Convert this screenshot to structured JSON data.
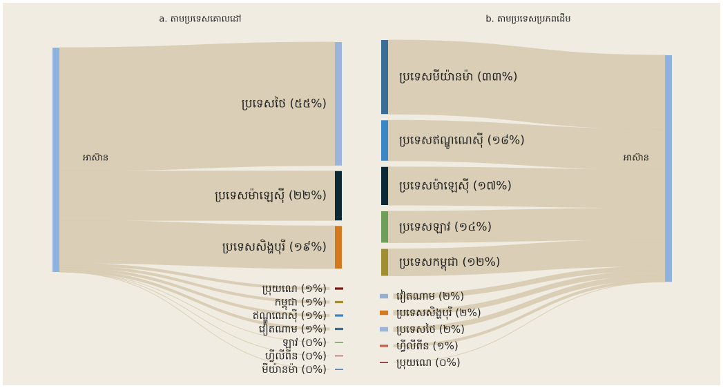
{
  "chart_data": [
    {
      "type": "sankey",
      "title": "a. តាមប្រទេសគោលដៅ",
      "source": "អាស៊ាន",
      "source_side": "left",
      "source_color": "#8fb3e0",
      "categories": [
        "ប្រទេសថៃ",
        "ប្រទេសម៉ាឡេស៊ី",
        "ប្រទេសសិង្ហបុរី",
        "ប្រុយណេ",
        "កម្ពុជា",
        "ឥណ្ឌូណេស៊ី",
        "វៀតណាម",
        "ឡាវ",
        "ហ្វីលីពីន",
        "មីយ៉ានម៉ា"
      ],
      "values": [
        55,
        22,
        19,
        1,
        1,
        1,
        1,
        0,
        0,
        0
      ],
      "value_labels": [
        "(៥៥%)",
        "(២២%)",
        "(១៩%)",
        "(១%)",
        "(១%)",
        "(១%)",
        "(១%)",
        "(០%)",
        "(០%)",
        "(០%)"
      ],
      "colors": [
        "#9ab4dc",
        "#0b2a35",
        "#d4791e",
        "#7a1a12",
        "#a08f32",
        "#3b86c6",
        "#3a6e96",
        "#6f9e5a",
        "#c9624a",
        "#3a6e96"
      ]
    },
    {
      "type": "sankey",
      "title": "b. តាមប្រទេសប្រភពដើម",
      "source": "អាស៊ាន",
      "source_side": "right",
      "source_color": "#8fb3e0",
      "categories": [
        "ប្រទេសមីយ៉ានម៉ា",
        "ប្រទេសឥណ្ឌូណេស៊ី",
        "ប្រទេសម៉ាឡេស៊ី",
        "ប្រទេសឡាវ",
        "ប្រទេសកម្ពុជា",
        "វៀតណាម",
        "ប្រទេសសិង្ហបុរី",
        "ប្រទេសថៃ",
        "ហ្វីលីពីន",
        "ប្រុយណេ"
      ],
      "values": [
        33,
        18,
        17,
        14,
        12,
        2,
        2,
        2,
        1,
        0
      ],
      "value_labels": [
        "(៣៣%)",
        "(១៨%)",
        "(១៧%)",
        "(១៤%)",
        "(១២%)",
        "(២%)",
        "(២%)",
        "(២%)",
        "(១%)",
        "(០%)"
      ],
      "colors": [
        "#3a6e96",
        "#3b86c6",
        "#0b2a35",
        "#6f9e5a",
        "#a08f32",
        "#93b0cc",
        "#d4791e",
        "#9ab4dc",
        "#c9624a",
        "#7a1a12"
      ]
    }
  ]
}
